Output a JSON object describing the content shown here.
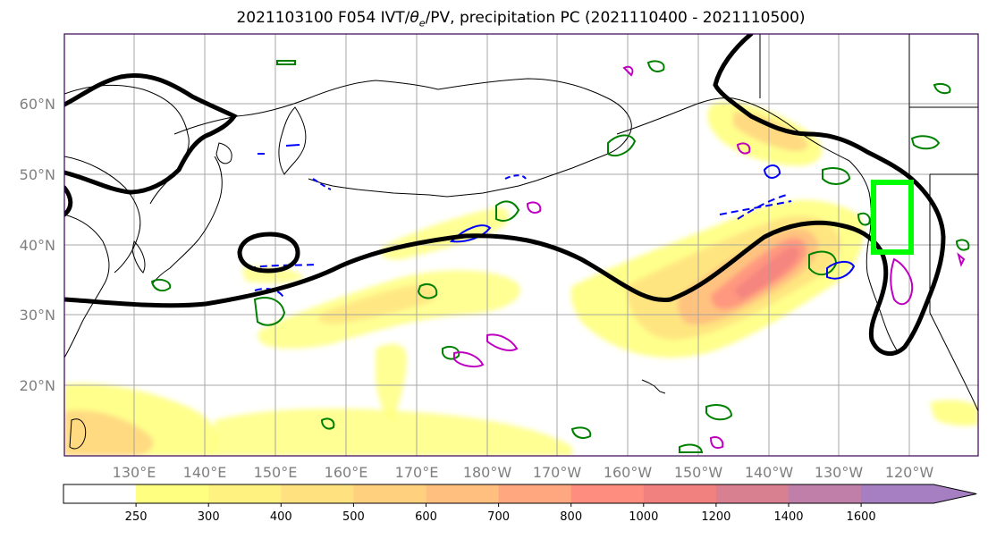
{
  "title": {
    "prefix": "2021103100 F054 IVT/",
    "theta": "θ",
    "theta_sub": "e",
    "suffix": "/PV, precipitation PC (2021110400 - 2021110500)"
  },
  "lat_labels": [
    "60°N",
    "50°N",
    "40°N",
    "30°N",
    "20°N"
  ],
  "lon_labels": [
    "130°E",
    "140°E",
    "150°E",
    "160°E",
    "170°E",
    "180°W",
    "170°W",
    "160°W",
    "150°W",
    "140°W",
    "130°W",
    "120°W"
  ],
  "colorbar": {
    "ticks": [
      "250",
      "300",
      "400",
      "500",
      "600",
      "700",
      "800",
      "1000",
      "1200",
      "1400",
      "1600"
    ],
    "colors": [
      "#ffffff",
      "#ffff80",
      "#fff280",
      "#ffe27f",
      "#ffd17f",
      "#ffbf7f",
      "#ffa77f",
      "#ff8d7f",
      "#f1817f",
      "#d87f90",
      "#bf7fa8",
      "#a57fc2"
    ]
  },
  "colors": {
    "ivt_contour": "#000000",
    "pv_contour": "#008000",
    "theta_neg": "#0000ff",
    "theta_pos": "#c000c0",
    "target_box": "#00ff00",
    "coast": "#000000",
    "grid": "#9e9e9e"
  }
}
